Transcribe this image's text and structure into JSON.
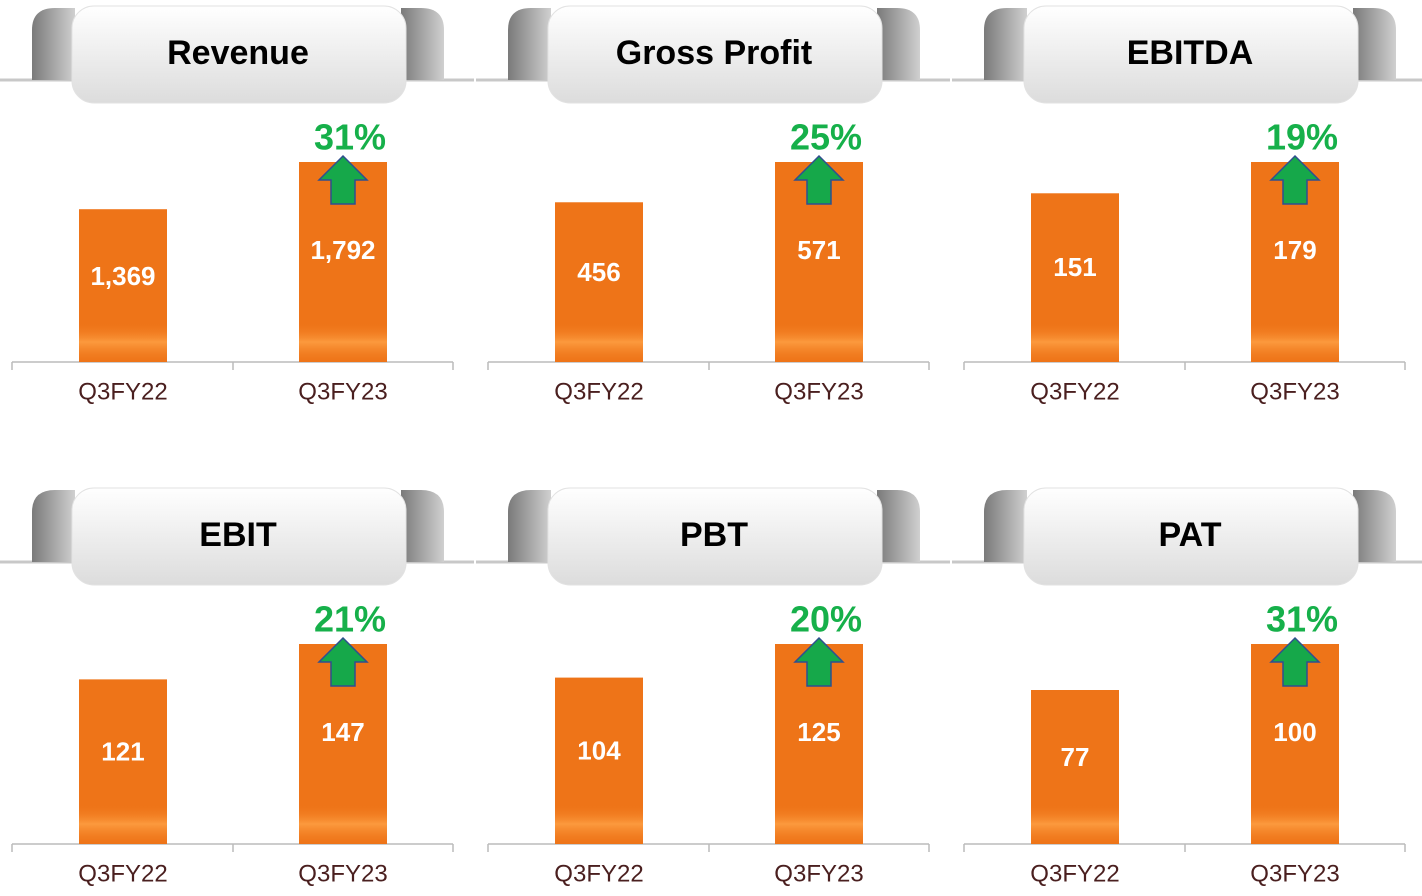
{
  "chart_data": [
    {
      "type": "bar",
      "title": "Revenue",
      "categories": [
        "Q3FY22",
        "Q3FY23"
      ],
      "values": [
        1369,
        1792
      ],
      "value_labels": [
        "1,369",
        "1,792"
      ],
      "annotation": "31%",
      "color": "#ee7418"
    },
    {
      "type": "bar",
      "title": "Gross Profit",
      "categories": [
        "Q3FY22",
        "Q3FY23"
      ],
      "values": [
        456,
        571
      ],
      "annotation": "25%",
      "color": "#ee7418"
    },
    {
      "type": "bar",
      "title": "EBITDA",
      "categories": [
        "Q3FY22",
        "Q3FY23"
      ],
      "values": [
        151,
        179
      ],
      "annotation": "19%",
      "color": "#ee7418"
    },
    {
      "type": "bar",
      "title": "EBIT",
      "categories": [
        "Q3FY22",
        "Q3FY23"
      ],
      "values": [
        121,
        147
      ],
      "annotation": "21%",
      "color": "#ee7418"
    },
    {
      "type": "bar",
      "title": "PBT",
      "categories": [
        "Q3FY22",
        "Q3FY23"
      ],
      "values": [
        104,
        125
      ],
      "annotation": "20%",
      "color": "#ee7418"
    },
    {
      "type": "bar",
      "title": "PAT",
      "categories": [
        "Q3FY22",
        "Q3FY23"
      ],
      "values": [
        77,
        100
      ],
      "annotation": "31%",
      "color": "#ee7418"
    }
  ]
}
